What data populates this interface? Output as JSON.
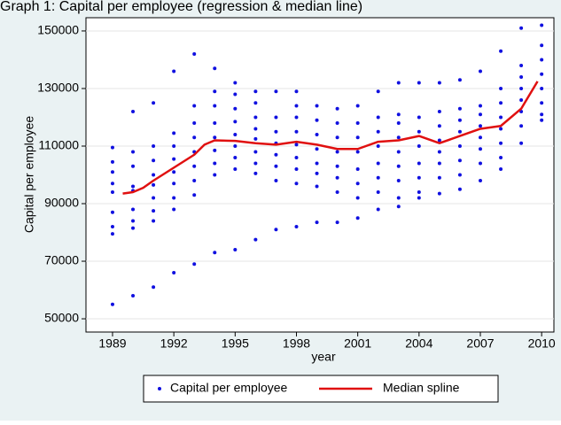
{
  "chart_data": {
    "type": "scatter",
    "title": "Graph 1: Capital per employee (regression & median line)",
    "xlabel": "year",
    "ylabel": "Capital per employee",
    "xlim": [
      1987.7,
      2010.6
    ],
    "ylim": [
      45400,
      154600
    ],
    "xticks": [
      1989,
      1992,
      1995,
      1998,
      2001,
      2004,
      2007,
      2010
    ],
    "yticks": [
      50000,
      70000,
      90000,
      110000,
      130000,
      150000
    ],
    "grid": true,
    "legend": "bottom",
    "series": [
      {
        "name": "Capital per employee",
        "color": "#1010e0",
        "kind": "points",
        "points": [
          [
            1989,
            55000
          ],
          [
            1989,
            79500
          ],
          [
            1989,
            82000
          ],
          [
            1989,
            87000
          ],
          [
            1989,
            94000
          ],
          [
            1989,
            97000
          ],
          [
            1989,
            101000
          ],
          [
            1989,
            104500
          ],
          [
            1989,
            109500
          ],
          [
            1990,
            58000
          ],
          [
            1990,
            81500
          ],
          [
            1990,
            84000
          ],
          [
            1990,
            88000
          ],
          [
            1990,
            94500
          ],
          [
            1990,
            96000
          ],
          [
            1990,
            103000
          ],
          [
            1990,
            108000
          ],
          [
            1990,
            122000
          ],
          [
            1991,
            61000
          ],
          [
            1991,
            84000
          ],
          [
            1991,
            87500
          ],
          [
            1991,
            92000
          ],
          [
            1991,
            96500
          ],
          [
            1991,
            100000
          ],
          [
            1991,
            105000
          ],
          [
            1991,
            110000
          ],
          [
            1991,
            125000
          ],
          [
            1992,
            66000
          ],
          [
            1992,
            88000
          ],
          [
            1992,
            92000
          ],
          [
            1992,
            97000
          ],
          [
            1992,
            101000
          ],
          [
            1992,
            105500
          ],
          [
            1992,
            110000
          ],
          [
            1992,
            114500
          ],
          [
            1992,
            136000
          ],
          [
            1993,
            69000
          ],
          [
            1993,
            93000
          ],
          [
            1993,
            98000
          ],
          [
            1993,
            103000
          ],
          [
            1993,
            108000
          ],
          [
            1993,
            113000
          ],
          [
            1993,
            118000
          ],
          [
            1993,
            124000
          ],
          [
            1993,
            142000
          ],
          [
            1994,
            73000
          ],
          [
            1994,
            100000
          ],
          [
            1994,
            104000
          ],
          [
            1994,
            108500
          ],
          [
            1994,
            113000
          ],
          [
            1994,
            118000
          ],
          [
            1994,
            124000
          ],
          [
            1994,
            129000
          ],
          [
            1994,
            137000
          ],
          [
            1995,
            74000
          ],
          [
            1995,
            102000
          ],
          [
            1995,
            106000
          ],
          [
            1995,
            110000
          ],
          [
            1995,
            114000
          ],
          [
            1995,
            118500
          ],
          [
            1995,
            123000
          ],
          [
            1995,
            128000
          ],
          [
            1995,
            132000
          ],
          [
            1996,
            77500
          ],
          [
            1996,
            100500
          ],
          [
            1996,
            104000
          ],
          [
            1996,
            108000
          ],
          [
            1996,
            112500
          ],
          [
            1996,
            116000
          ],
          [
            1996,
            120000
          ],
          [
            1996,
            125000
          ],
          [
            1996,
            129000
          ],
          [
            1997,
            81000
          ],
          [
            1997,
            98000
          ],
          [
            1997,
            103000
          ],
          [
            1997,
            107000
          ],
          [
            1997,
            111000
          ],
          [
            1997,
            115000
          ],
          [
            1997,
            120000
          ],
          [
            1997,
            129000
          ],
          [
            1998,
            82000
          ],
          [
            1998,
            97000
          ],
          [
            1998,
            102000
          ],
          [
            1998,
            106000
          ],
          [
            1998,
            110500
          ],
          [
            1998,
            115000
          ],
          [
            1998,
            120000
          ],
          [
            1998,
            124000
          ],
          [
            1998,
            129000
          ],
          [
            1999,
            83500
          ],
          [
            1999,
            96000
          ],
          [
            1999,
            100500
          ],
          [
            1999,
            104000
          ],
          [
            1999,
            109000
          ],
          [
            1999,
            114000
          ],
          [
            1999,
            119000
          ],
          [
            1999,
            124000
          ],
          [
            2000,
            83500
          ],
          [
            2000,
            94000
          ],
          [
            2000,
            99000
          ],
          [
            2000,
            103000
          ],
          [
            2000,
            108000
          ],
          [
            2000,
            113000
          ],
          [
            2000,
            118000
          ],
          [
            2000,
            123000
          ],
          [
            2001,
            85000
          ],
          [
            2001,
            92000
          ],
          [
            2001,
            97000
          ],
          [
            2001,
            102000
          ],
          [
            2001,
            108000
          ],
          [
            2001,
            113000
          ],
          [
            2001,
            118000
          ],
          [
            2001,
            124000
          ],
          [
            2002,
            88000
          ],
          [
            2002,
            94000
          ],
          [
            2002,
            99000
          ],
          [
            2002,
            104000
          ],
          [
            2002,
            110000
          ],
          [
            2002,
            115000
          ],
          [
            2002,
            120000
          ],
          [
            2002,
            129000
          ],
          [
            2003,
            89000
          ],
          [
            2003,
            92000
          ],
          [
            2003,
            98000
          ],
          [
            2003,
            103000
          ],
          [
            2003,
            108000
          ],
          [
            2003,
            113000
          ],
          [
            2003,
            118000
          ],
          [
            2003,
            121000
          ],
          [
            2003,
            132000
          ],
          [
            2004,
            92000
          ],
          [
            2004,
            94000
          ],
          [
            2004,
            99000
          ],
          [
            2004,
            104000
          ],
          [
            2004,
            110000
          ],
          [
            2004,
            115000
          ],
          [
            2004,
            120000
          ],
          [
            2004,
            132000
          ],
          [
            2005,
            93500
          ],
          [
            2005,
            99000
          ],
          [
            2005,
            104000
          ],
          [
            2005,
            108000
          ],
          [
            2005,
            112000
          ],
          [
            2005,
            117000
          ],
          [
            2005,
            122000
          ],
          [
            2005,
            132000
          ],
          [
            2006,
            95000
          ],
          [
            2006,
            100000
          ],
          [
            2006,
            105000
          ],
          [
            2006,
            110000
          ],
          [
            2006,
            115000
          ],
          [
            2006,
            119000
          ],
          [
            2006,
            123000
          ],
          [
            2006,
            133000
          ],
          [
            2007,
            98000
          ],
          [
            2007,
            104000
          ],
          [
            2007,
            109000
          ],
          [
            2007,
            113000
          ],
          [
            2007,
            117000
          ],
          [
            2007,
            121000
          ],
          [
            2007,
            124000
          ],
          [
            2007,
            136000
          ],
          [
            2008,
            102000
          ],
          [
            2008,
            106000
          ],
          [
            2008,
            111000
          ],
          [
            2008,
            116000
          ],
          [
            2008,
            120000
          ],
          [
            2008,
            125000
          ],
          [
            2008,
            130000
          ],
          [
            2008,
            143000
          ],
          [
            2009,
            111000
          ],
          [
            2009,
            117000
          ],
          [
            2009,
            122000
          ],
          [
            2009,
            126000
          ],
          [
            2009,
            130000
          ],
          [
            2009,
            134000
          ],
          [
            2009,
            138000
          ],
          [
            2009,
            151000
          ],
          [
            2010,
            119000
          ],
          [
            2010,
            121000
          ],
          [
            2010,
            125000
          ],
          [
            2010,
            130000
          ],
          [
            2010,
            135000
          ],
          [
            2010,
            140000
          ],
          [
            2010,
            145000
          ],
          [
            2010,
            152000
          ]
        ]
      },
      {
        "name": "Median spline",
        "color": "#e01010",
        "kind": "line",
        "points": [
          [
            1989.5,
            93500
          ],
          [
            1990,
            94000
          ],
          [
            1990.5,
            95500
          ],
          [
            1991,
            98000
          ],
          [
            1992,
            102500
          ],
          [
            1993,
            107000
          ],
          [
            1993.5,
            110500
          ],
          [
            1994,
            112000
          ],
          [
            1995,
            111800
          ],
          [
            1996,
            111000
          ],
          [
            1997,
            110500
          ],
          [
            1998,
            111500
          ],
          [
            1999,
            110500
          ],
          [
            2000,
            109000
          ],
          [
            2001,
            109000
          ],
          [
            2002,
            111500
          ],
          [
            2003,
            112000
          ],
          [
            2004,
            113500
          ],
          [
            2005,
            111000
          ],
          [
            2006,
            113500
          ],
          [
            2007,
            116000
          ],
          [
            2008,
            117000
          ],
          [
            2009,
            123000
          ],
          [
            2009.8,
            132500
          ]
        ]
      }
    ]
  }
}
